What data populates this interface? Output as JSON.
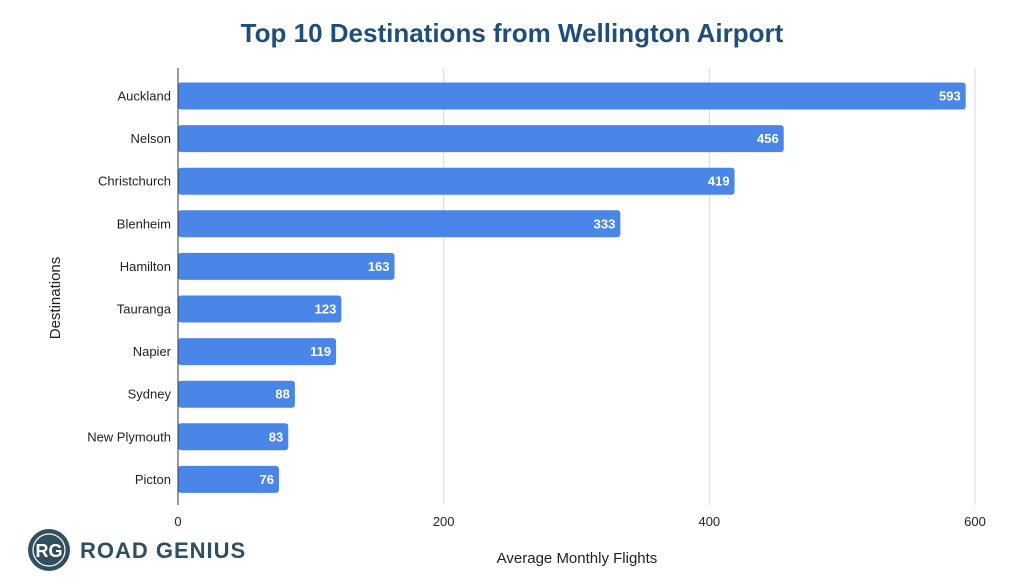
{
  "chart_data": {
    "type": "bar",
    "orientation": "horizontal",
    "title": "Top 10 Destinations from Wellington Airport",
    "xlabel": "Average Monthly Flights",
    "ylabel": "Destinations",
    "categories": [
      "Auckland",
      "Nelson",
      "Christchurch",
      "Blenheim",
      "Hamilton",
      "Tauranga",
      "Napier",
      "Sydney",
      "New Plymouth",
      "Picton"
    ],
    "values": [
      593,
      456,
      419,
      333,
      163,
      123,
      119,
      88,
      83,
      76
    ],
    "xlim": [
      0,
      600
    ],
    "xticks": [
      0,
      200,
      400,
      600
    ],
    "grid": true,
    "data_labels": true
  },
  "colors": {
    "bar": "#4a86e8",
    "title": "#1f4e79",
    "grid": "#d9d9d9",
    "axis": "#333333",
    "logo": "#2f4f5f"
  },
  "branding": {
    "logo_text": "ROAD GENIUS",
    "logo_mark": "RG"
  }
}
